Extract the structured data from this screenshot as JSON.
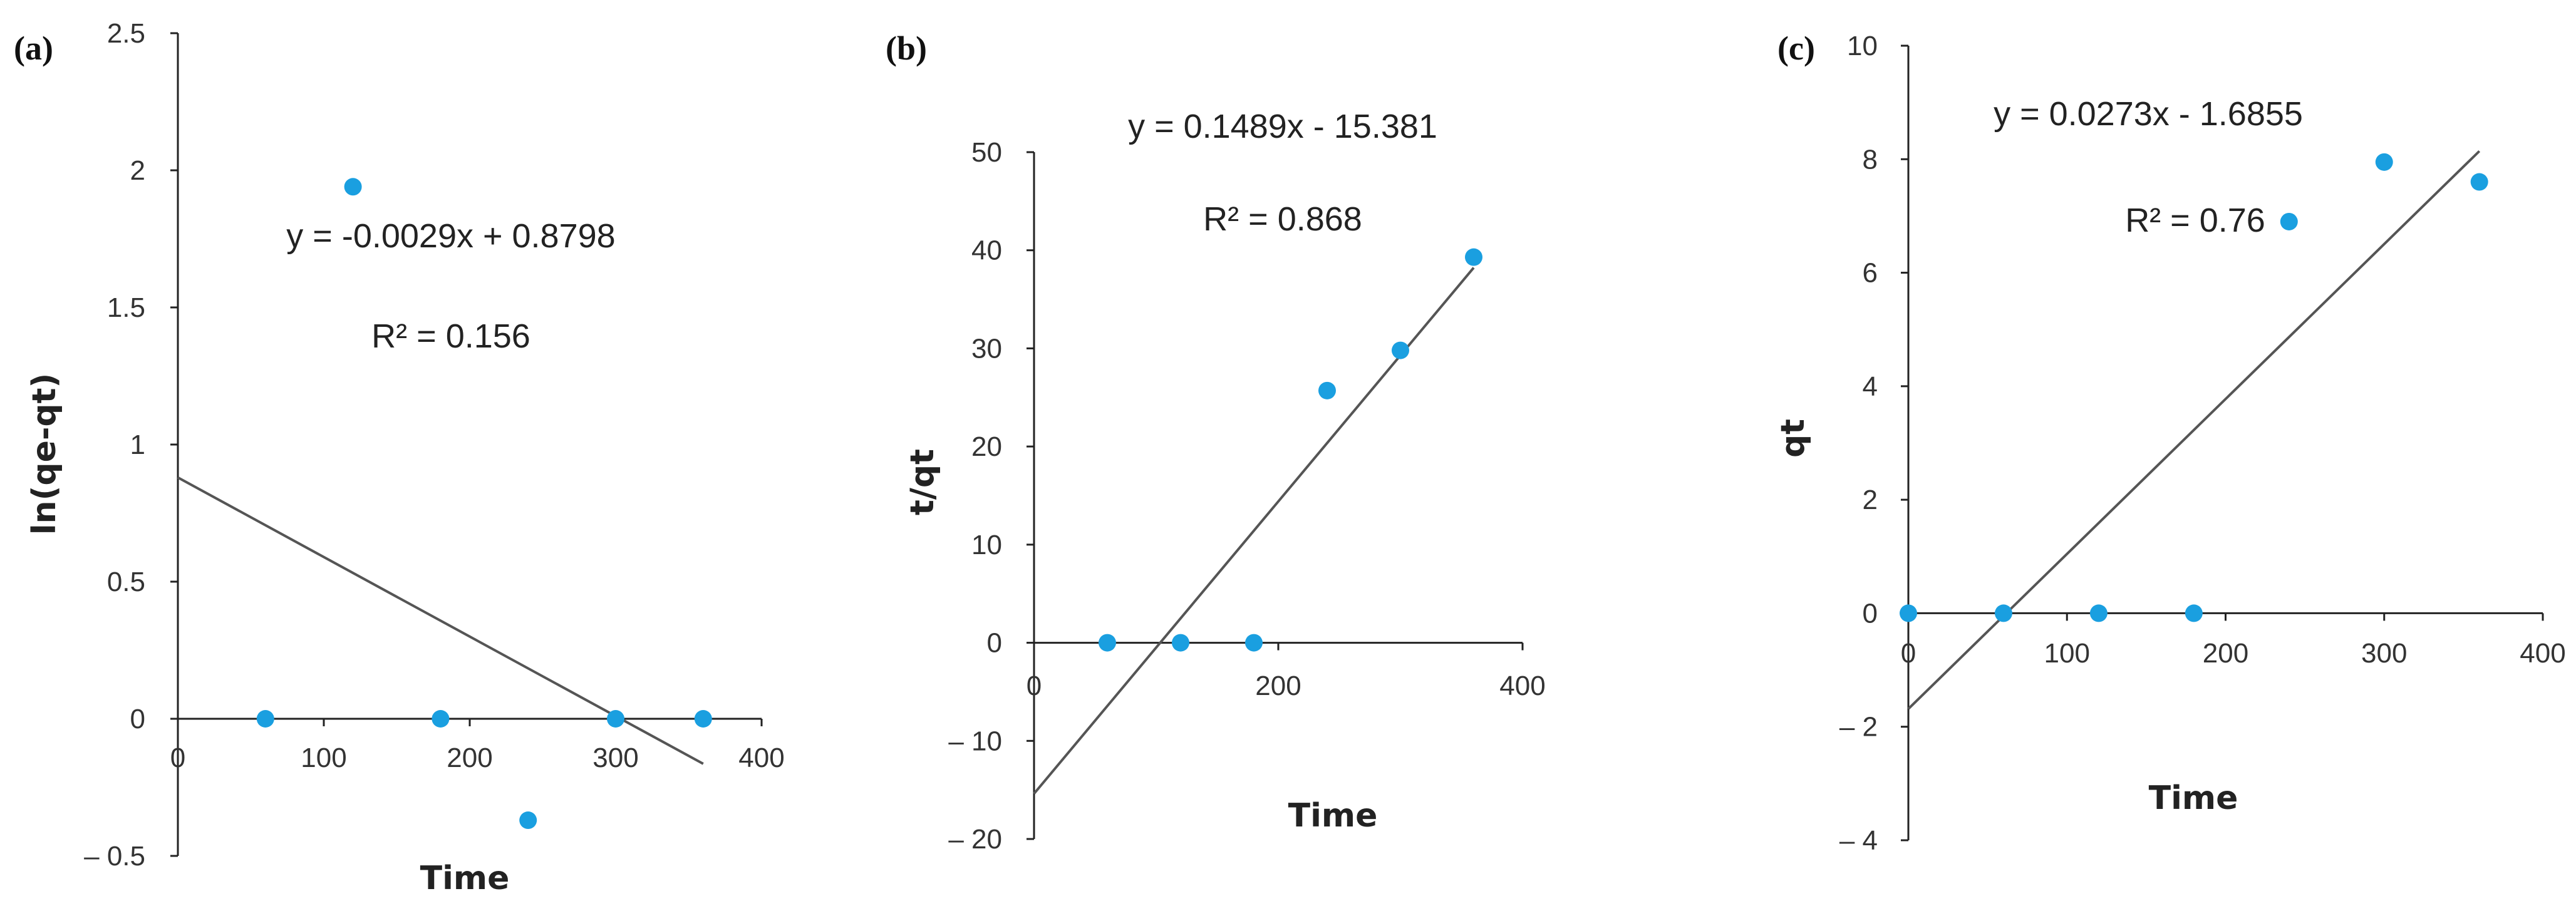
{
  "colors": {
    "point": "#1a9fe0",
    "axis": "#222222",
    "trend": "#555555"
  },
  "chart_data": [
    {
      "panel_label": "(a)",
      "type": "scatter",
      "xlabel": "Time",
      "ylabel": "ln(qe-qt)",
      "xlim": [
        0,
        400
      ],
      "ylim": [
        -0.5,
        2.5
      ],
      "xticks": [
        0,
        100,
        200,
        300,
        400
      ],
      "yticks": [
        2.5,
        2,
        1.5,
        1,
        0.5,
        0,
        -0.5
      ],
      "ytick_labels": [
        "2.5",
        "2",
        "1.5",
        "1",
        "0.5",
        "0",
        "– 0.5"
      ],
      "points": [
        [
          60,
          0
        ],
        [
          120,
          1.94
        ],
        [
          180,
          0
        ],
        [
          240,
          -0.37
        ],
        [
          300,
          0
        ],
        [
          360,
          0
        ]
      ],
      "trendline": {
        "slope": -0.0029,
        "intercept": 0.8798,
        "x_range": [
          0,
          360
        ]
      },
      "equation": "y = -0.0029x + 0.8798",
      "r2": "R² = 0.156",
      "grid": false,
      "legend": "none"
    },
    {
      "panel_label": "(b)",
      "type": "scatter",
      "xlabel": "Time",
      "ylabel": "t/qt",
      "xlim": [
        0,
        400
      ],
      "ylim": [
        -20,
        50
      ],
      "xticks": [
        0,
        200,
        400
      ],
      "yticks": [
        50,
        40,
        30,
        20,
        10,
        0,
        -10,
        -20
      ],
      "ytick_labels": [
        "50",
        "40",
        "30",
        "20",
        "10",
        "0",
        "– 10",
        "– 20"
      ],
      "points": [
        [
          60,
          0
        ],
        [
          120,
          0
        ],
        [
          180,
          0
        ],
        [
          240,
          25.7
        ],
        [
          300,
          29.8
        ],
        [
          360,
          39.3
        ]
      ],
      "trendline": {
        "slope": 0.1489,
        "intercept": -15.381,
        "x_range": [
          0,
          360
        ]
      },
      "equation": "y = 0.1489x - 15.381",
      "r2": "R² = 0.868",
      "grid": false,
      "legend": "none"
    },
    {
      "panel_label": "(c)",
      "type": "scatter",
      "xlabel": "Time",
      "ylabel": "qt",
      "xlim": [
        0,
        400
      ],
      "ylim": [
        -4,
        10
      ],
      "xticks": [
        0,
        100,
        200,
        300,
        400
      ],
      "yticks": [
        10,
        8,
        6,
        4,
        2,
        0,
        -2,
        -4
      ],
      "ytick_labels": [
        "10",
        "8",
        "6",
        "4",
        "2",
        "0",
        "– 2",
        "– 4"
      ],
      "points": [
        [
          0,
          0
        ],
        [
          60,
          0
        ],
        [
          120,
          0
        ],
        [
          180,
          0
        ],
        [
          240,
          6.9
        ],
        [
          300,
          7.95
        ],
        [
          360,
          7.6
        ]
      ],
      "trendline": {
        "slope": 0.0273,
        "intercept": -1.6855,
        "x_range": [
          0,
          360
        ]
      },
      "equation": "y = 0.0273x - 1.6855",
      "r2": "R² = 0.76",
      "grid": false,
      "legend": "none"
    }
  ]
}
